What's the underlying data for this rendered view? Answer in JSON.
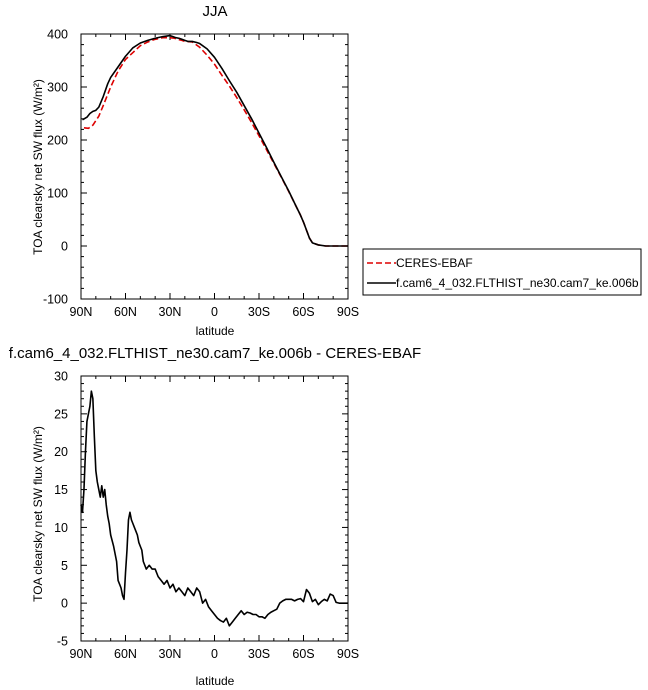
{
  "chart_data": [
    {
      "type": "line",
      "title": "JJA",
      "xlabel": "latitude",
      "ylabel": "TOA clearsky net SW flux (W/m²)",
      "xlim": [
        -90,
        90
      ],
      "ylim": [
        -100,
        400
      ],
      "x_direction": "90N to 90S",
      "xticks": [
        -90,
        -60,
        -30,
        0,
        30,
        60,
        90
      ],
      "xtick_labels": [
        "90N",
        "60N",
        "30N",
        "0",
        "30S",
        "60S",
        "90S"
      ],
      "yticks": [
        -100,
        0,
        100,
        200,
        300,
        400
      ],
      "ytick_labels": [
        "-100",
        "0",
        "100",
        "200",
        "300",
        "400"
      ],
      "legend_position": "right",
      "series": [
        {
          "name": "CERES-EBAF",
          "color": "#dd0000",
          "dash": "dashed",
          "x": [
            -88,
            -85,
            -82,
            -78,
            -75,
            -70,
            -65,
            -60,
            -55,
            -50,
            -45,
            -40,
            -35,
            -30,
            -27,
            -25,
            -22,
            -20,
            -15,
            -10,
            -5,
            0,
            5,
            10,
            15,
            20,
            25,
            30,
            35,
            40,
            45,
            50,
            55,
            58,
            60,
            62,
            64,
            66,
            70,
            75,
            80,
            85,
            90
          ],
          "y": [
            223,
            222,
            228,
            245,
            265,
            300,
            330,
            352,
            365,
            378,
            385,
            390,
            393,
            393,
            392,
            390,
            388,
            386,
            385,
            375,
            360,
            343,
            322,
            302,
            280,
            257,
            233,
            208,
            182,
            156,
            130,
            103,
            75,
            58,
            45,
            30,
            15,
            6,
            2,
            0,
            0,
            0,
            0
          ]
        },
        {
          "name": "f.cam6_4_032.FLTHIST_ne30.cam7_ke.006b",
          "color": "#000000",
          "dash": "solid",
          "x": [
            -89,
            -86,
            -84,
            -82,
            -80,
            -78,
            -75,
            -72,
            -70,
            -65,
            -60,
            -55,
            -50,
            -45,
            -40,
            -35,
            -30,
            -28,
            -26,
            -24,
            -22,
            -20,
            -18,
            -15,
            -12,
            -10,
            -5,
            0,
            5,
            10,
            15,
            20,
            25,
            30,
            35,
            40,
            45,
            50,
            55,
            58,
            60,
            62,
            64,
            66,
            70,
            75,
            80,
            85,
            90
          ],
          "y": [
            238,
            243,
            250,
            254,
            256,
            262,
            282,
            306,
            318,
            338,
            358,
            374,
            383,
            388,
            392,
            395,
            397,
            395,
            393,
            392,
            390,
            388,
            386,
            386,
            384,
            382,
            372,
            356,
            335,
            312,
            290,
            265,
            240,
            213,
            186,
            158,
            131,
            104,
            75,
            58,
            45,
            30,
            15,
            6,
            2,
            0,
            0,
            0,
            0
          ]
        }
      ]
    },
    {
      "type": "line",
      "title": "f.cam6_4_032.FLTHIST_ne30.cam7_ke.006b - CERES-EBAF",
      "xlabel": "latitude",
      "ylabel": "TOA clearsky net SW flux (W/m²)",
      "xlim": [
        -90,
        90
      ],
      "ylim": [
        -5,
        30
      ],
      "x_direction": "90N to 90S",
      "xticks": [
        -90,
        -60,
        -30,
        0,
        30,
        60,
        90
      ],
      "xtick_labels": [
        "90N",
        "60N",
        "30N",
        "0",
        "30S",
        "60S",
        "90S"
      ],
      "yticks": [
        -5,
        0,
        5,
        10,
        15,
        20,
        25,
        30
      ],
      "ytick_labels": [
        "-5",
        "0",
        "5",
        "10",
        "15",
        "20",
        "25",
        "30"
      ],
      "series": [
        {
          "color": "#000000",
          "dash": "solid",
          "x": [
            -90,
            -89,
            -88,
            -87,
            -86,
            -85,
            -84,
            -83,
            -82,
            -81,
            -80,
            -79,
            -78,
            -77,
            -76,
            -75,
            -74,
            -73,
            -72,
            -71,
            -70,
            -68,
            -66,
            -65,
            -64,
            -63,
            -62,
            -61,
            -60,
            -59,
            -58,
            -57,
            -56,
            -55,
            -54,
            -53,
            -52,
            -51,
            -50,
            -49,
            -48,
            -46,
            -44,
            -42,
            -40,
            -38,
            -36,
            -34,
            -32,
            -30,
            -28,
            -26,
            -24,
            -22,
            -20,
            -18,
            -16,
            -14,
            -12,
            -10,
            -8,
            -6,
            -4,
            -2,
            0,
            2,
            4,
            6,
            8,
            10,
            12,
            14,
            16,
            18,
            20,
            22,
            24,
            26,
            28,
            30,
            32,
            34,
            36,
            38,
            40,
            42,
            44,
            46,
            48,
            50,
            52,
            54,
            56,
            58,
            60,
            62,
            64,
            66,
            68,
            70,
            72,
            74,
            76,
            78,
            80,
            82,
            84,
            86,
            88,
            90
          ],
          "y": [
            13,
            12,
            15,
            20,
            24,
            25,
            26,
            28,
            27,
            22,
            17.5,
            16,
            15,
            14,
            15.5,
            14,
            15,
            13,
            11.5,
            10.5,
            9,
            7.5,
            5.5,
            3,
            2.5,
            2,
            1,
            0.5,
            4,
            7,
            11,
            12,
            11,
            10.5,
            10,
            9.5,
            9,
            8,
            7.5,
            7,
            5.5,
            4.5,
            5,
            4.5,
            4.5,
            3.5,
            3,
            2.5,
            3,
            2,
            2.5,
            1.5,
            2,
            1.5,
            1,
            2,
            1.5,
            1,
            2,
            1.5,
            0,
            0.5,
            -0.5,
            -1,
            -1.5,
            -2,
            -2.3,
            -2.5,
            -2,
            -3,
            -2.5,
            -2,
            -1.5,
            -1,
            -1.5,
            -1.2,
            -1.3,
            -1.5,
            -1.5,
            -1.8,
            -1.8,
            -2,
            -1.5,
            -1.2,
            -1,
            -0.8,
            0,
            0.3,
            0.5,
            0.5,
            0.5,
            0.3,
            0.5,
            0.6,
            0.2,
            1.8,
            1.3,
            0.2,
            0.5,
            -0.2,
            0.2,
            0.5,
            0.3,
            1.2,
            1,
            0.1,
            0,
            0,
            0,
            0
          ]
        }
      ]
    }
  ]
}
